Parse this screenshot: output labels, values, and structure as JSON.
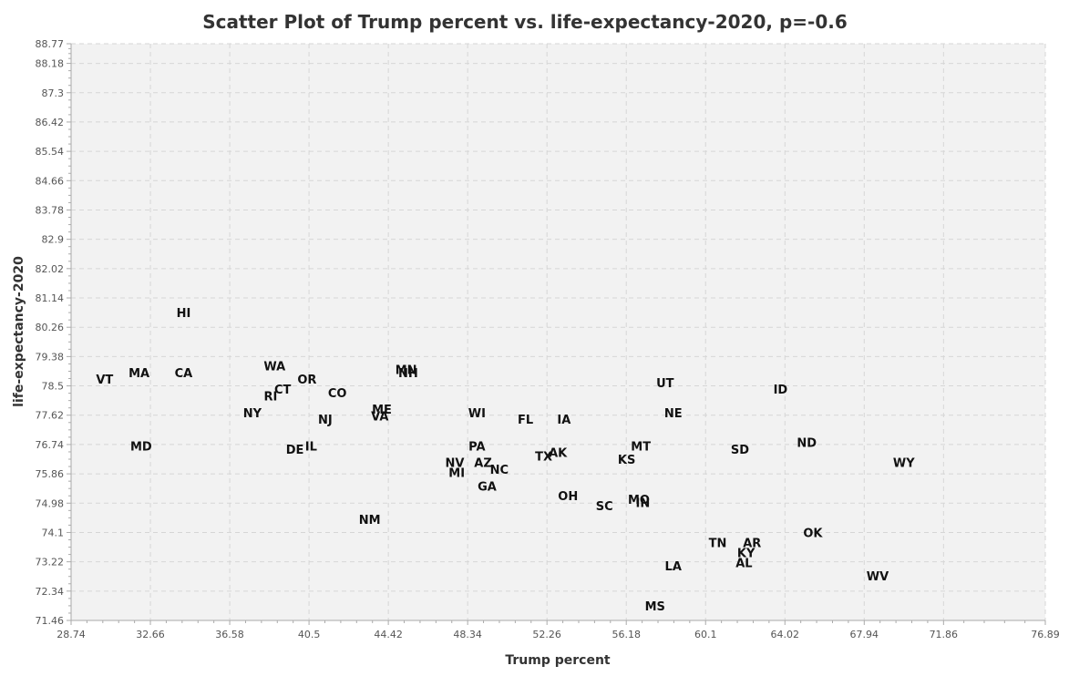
{
  "chart_data": {
    "type": "scatter",
    "title": "Scatter Plot of Trump percent vs. life-expectancy-2020, p=-0.6",
    "xlabel": "Trump percent",
    "ylabel": "life-expectancy-2020",
    "xlim": [
      28.74,
      76.89
    ],
    "ylim": [
      71.46,
      88.77
    ],
    "x_ticks": [
      28.74,
      32.66,
      36.58,
      40.5,
      44.42,
      48.34,
      52.26,
      56.18,
      60.1,
      64.02,
      67.94,
      71.86,
      76.89
    ],
    "x_tick_labels": [
      "28.74",
      "32.66",
      "36.58",
      "40.5",
      "44.42",
      "48.34",
      "52.26",
      "56.18",
      "60.1",
      "64.02",
      "67.94",
      "71.86",
      "76.89"
    ],
    "y_ticks": [
      71.46,
      72.34,
      73.22,
      74.1,
      74.98,
      75.86,
      76.74,
      77.62,
      78.5,
      79.38,
      80.26,
      81.14,
      82.02,
      82.9,
      83.78,
      84.66,
      85.54,
      86.42,
      87.3,
      88.18,
      88.77
    ],
    "y_tick_labels": [
      "71.46",
      "72.34",
      "73.22",
      "74.1",
      "74.98",
      "75.86",
      "76.74",
      "77.62",
      "78.5",
      "79.38",
      "80.26",
      "81.14",
      "82.02",
      "82.9",
      "83.78",
      "84.66",
      "85.54",
      "86.42",
      "87.3",
      "88.18",
      "88.77"
    ],
    "grid": true,
    "points": [
      {
        "label": "HI",
        "x": 34.3,
        "y": 80.7
      },
      {
        "label": "VT",
        "x": 30.4,
        "y": 78.7
      },
      {
        "label": "MA",
        "x": 32.1,
        "y": 78.9
      },
      {
        "label": "CA",
        "x": 34.3,
        "y": 78.9
      },
      {
        "label": "MD",
        "x": 32.2,
        "y": 76.7
      },
      {
        "label": "WA",
        "x": 38.8,
        "y": 79.1
      },
      {
        "label": "OR",
        "x": 40.4,
        "y": 78.7
      },
      {
        "label": "RI",
        "x": 38.6,
        "y": 78.2
      },
      {
        "label": "CT",
        "x": 39.2,
        "y": 78.4
      },
      {
        "label": "NY",
        "x": 37.7,
        "y": 77.7
      },
      {
        "label": "CO",
        "x": 41.9,
        "y": 78.3
      },
      {
        "label": "NJ",
        "x": 41.3,
        "y": 77.5
      },
      {
        "label": "DE",
        "x": 39.8,
        "y": 76.6
      },
      {
        "label": "IL",
        "x": 40.6,
        "y": 76.7
      },
      {
        "label": "MN",
        "x": 45.3,
        "y": 79.0
      },
      {
        "label": "NH",
        "x": 45.4,
        "y": 78.9
      },
      {
        "label": "ME",
        "x": 44.1,
        "y": 77.8
      },
      {
        "label": "VA",
        "x": 44.0,
        "y": 77.6
      },
      {
        "label": "NM",
        "x": 43.5,
        "y": 74.5
      },
      {
        "label": "WI",
        "x": 48.8,
        "y": 77.7
      },
      {
        "label": "PA",
        "x": 48.8,
        "y": 76.7
      },
      {
        "label": "NV",
        "x": 47.7,
        "y": 76.2
      },
      {
        "label": "MI",
        "x": 47.8,
        "y": 75.9
      },
      {
        "label": "AZ",
        "x": 49.1,
        "y": 76.2
      },
      {
        "label": "NC",
        "x": 49.9,
        "y": 76.0
      },
      {
        "label": "GA",
        "x": 49.3,
        "y": 75.5
      },
      {
        "label": "FL",
        "x": 51.2,
        "y": 77.5
      },
      {
        "label": "IA",
        "x": 53.1,
        "y": 77.5
      },
      {
        "label": "TX",
        "x": 52.1,
        "y": 76.4
      },
      {
        "label": "AK",
        "x": 52.8,
        "y": 76.5
      },
      {
        "label": "OH",
        "x": 53.3,
        "y": 75.2
      },
      {
        "label": "SC",
        "x": 55.1,
        "y": 74.9
      },
      {
        "label": "UT",
        "x": 58.1,
        "y": 78.6
      },
      {
        "label": "NE",
        "x": 58.5,
        "y": 77.7
      },
      {
        "label": "MT",
        "x": 56.9,
        "y": 76.7
      },
      {
        "label": "KS",
        "x": 56.2,
        "y": 76.3
      },
      {
        "label": "MO",
        "x": 56.8,
        "y": 75.1
      },
      {
        "label": "IN",
        "x": 57.0,
        "y": 75.0
      },
      {
        "label": "LA",
        "x": 58.5,
        "y": 73.1
      },
      {
        "label": "MS",
        "x": 57.6,
        "y": 71.9
      },
      {
        "label": "TN",
        "x": 60.7,
        "y": 73.8
      },
      {
        "label": "AR",
        "x": 62.4,
        "y": 73.8
      },
      {
        "label": "KY",
        "x": 62.1,
        "y": 73.5
      },
      {
        "label": "AL",
        "x": 62.0,
        "y": 73.2
      },
      {
        "label": "ID",
        "x": 63.8,
        "y": 78.4
      },
      {
        "label": "SD",
        "x": 61.8,
        "y": 76.6
      },
      {
        "label": "ND",
        "x": 65.1,
        "y": 76.8
      },
      {
        "label": "OK",
        "x": 65.4,
        "y": 74.1
      },
      {
        "label": "WY",
        "x": 69.9,
        "y": 76.2
      },
      {
        "label": "WV",
        "x": 68.6,
        "y": 72.8
      }
    ]
  }
}
